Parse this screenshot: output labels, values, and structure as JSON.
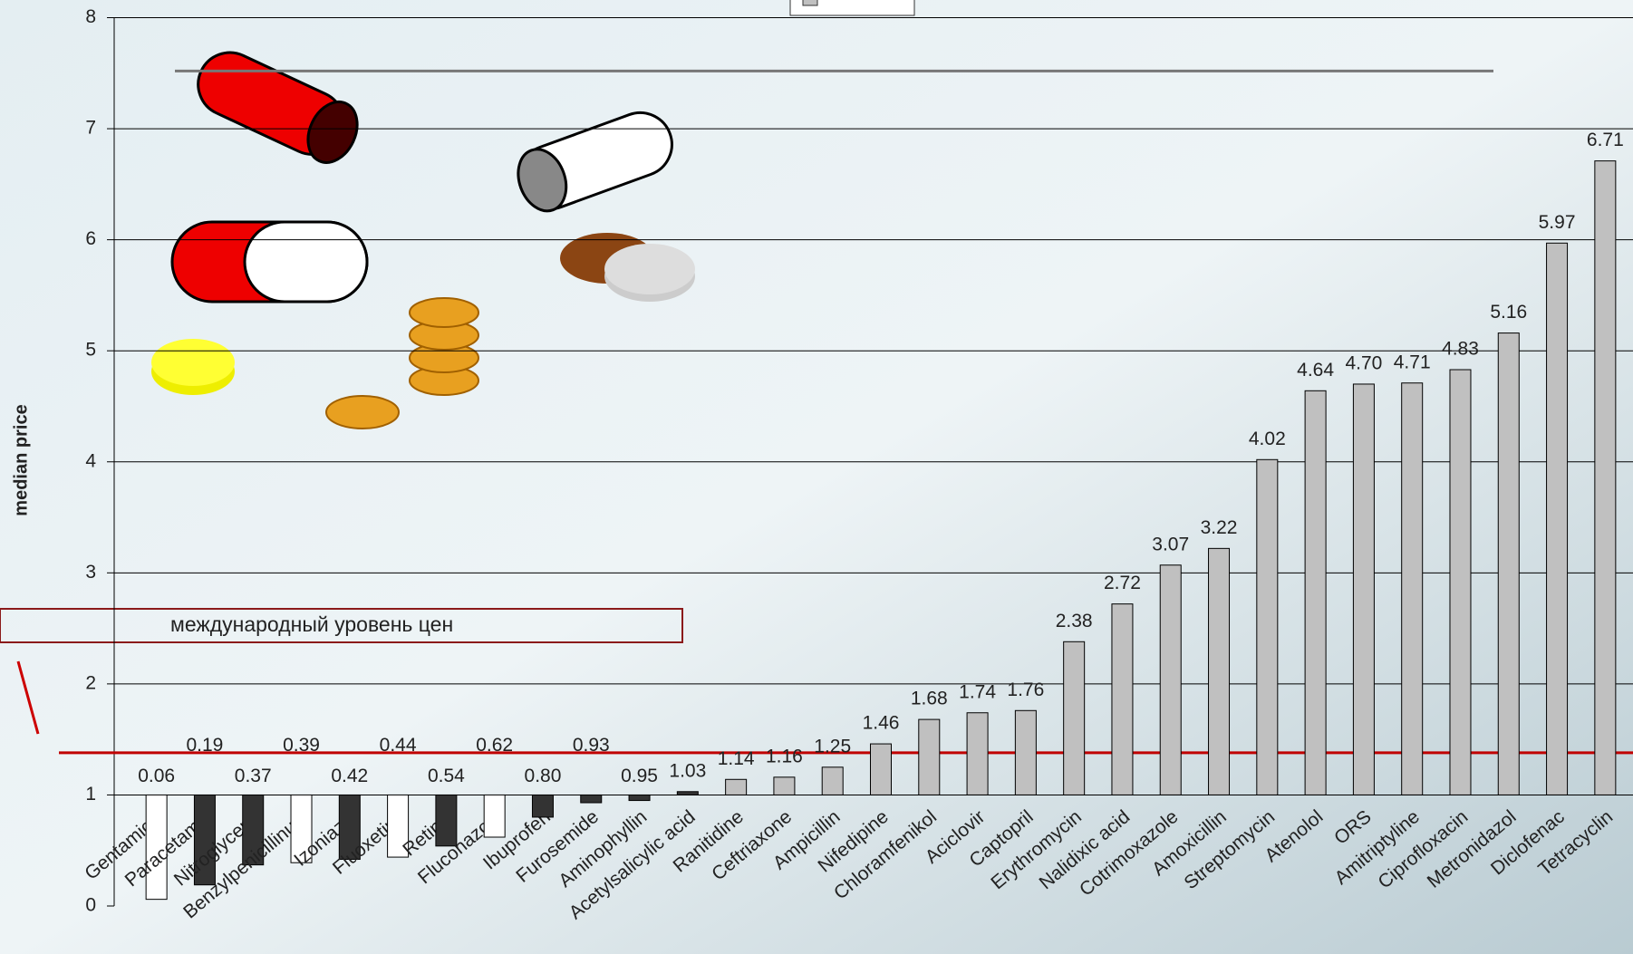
{
  "chart_data": {
    "type": "bar",
    "y_label": "median price",
    "annotation": "международный уровень цен",
    "categories": [
      "Gentamicin",
      "Paracetamol",
      "Nitroglycerin",
      "Benzylpenicillinum",
      "Izoniazid",
      "Fluoxetine",
      "Retinol",
      "Fluconazole",
      "Ibuprofen",
      "Furosemide",
      "Aminophyllin",
      "Acetylsalicylic acid",
      "Ranitidine",
      "Ceftriaxone",
      "Ampicillin",
      "Nifedipine",
      "Chloramfenikol",
      "Aciclovir",
      "Captopril",
      "Erythromycin",
      "Nalidixic acid",
      "Cotrimoxazole",
      "Amoxicillin",
      "Streptomycin",
      "Atenolol",
      "ORS",
      "Amitriptyline",
      "Ciprofloxacin",
      "Metronidazol",
      "Diclofenac",
      "Tetracyclin"
    ],
    "values": [
      0.06,
      0.19,
      0.37,
      0.39,
      0.42,
      0.44,
      0.54,
      0.62,
      0.8,
      0.93,
      0.95,
      1.03,
      1.14,
      1.16,
      1.25,
      1.46,
      1.68,
      1.74,
      1.76,
      2.38,
      2.72,
      3.07,
      3.22,
      4.02,
      4.64,
      4.7,
      4.71,
      4.83,
      5.16,
      5.97,
      6.71
    ],
    "value_labels": [
      "0.06",
      "0.19",
      "0.37",
      "0.39",
      "0.42",
      "0.44",
      "0.54",
      "0.62",
      "0.80",
      "0.93",
      "0.95",
      "1.03",
      "1.14",
      "1.16",
      "1.25",
      "1.46",
      "1.68",
      "1.74",
      "1.76",
      "2.38",
      "2.72",
      "3.07",
      "3.22",
      "4.02",
      "4.64",
      "4.70",
      "4.71",
      "4.83",
      "5.16",
      "5.97",
      "6.71"
    ],
    "colors": [
      "#ffffff",
      "#333333",
      "#333333",
      "#ffffff",
      "#333333",
      "#ffffff",
      "#333333",
      "#ffffff",
      "#333333",
      "#333333",
      "#333333",
      "#333333",
      "#c0c0c0",
      "#c0c0c0",
      "#c0c0c0",
      "#c0c0c0",
      "#c0c0c0",
      "#c0c0c0",
      "#c0c0c0",
      "#c0c0c0",
      "#c0c0c0",
      "#c0c0c0",
      "#c0c0c0",
      "#c0c0c0",
      "#c0c0c0",
      "#c0c0c0",
      "#c0c0c0",
      "#c0c0c0",
      "#c0c0c0",
      "#c0c0c0",
      "#c0c0c0"
    ],
    "baseline": 1,
    "ylim": [
      0,
      8
    ],
    "yticks": [
      0,
      1,
      2,
      3,
      4,
      5,
      6,
      7,
      8
    ],
    "grid": true,
    "reference_lines": [
      {
        "value": 1.38,
        "color": "#c00000"
      },
      {
        "value": 7.52,
        "color": "#777777"
      }
    ]
  }
}
